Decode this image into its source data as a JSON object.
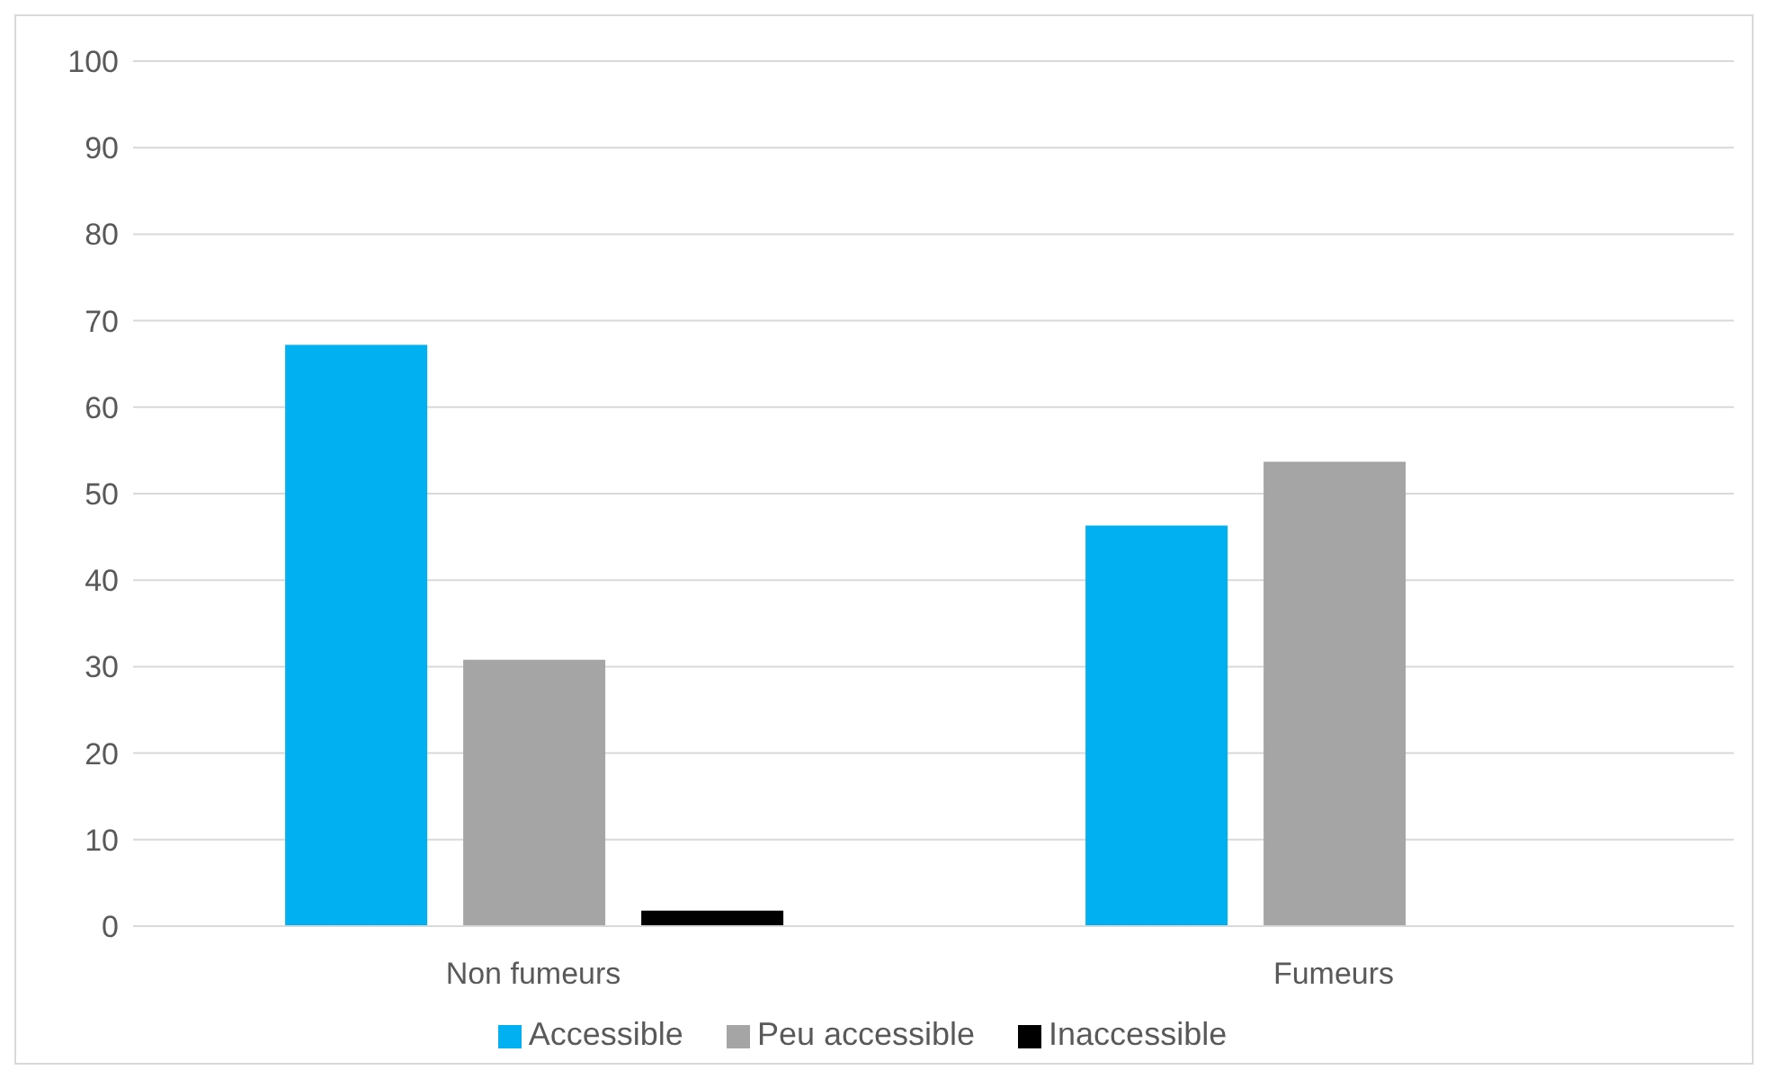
{
  "chart_data": {
    "type": "bar",
    "categories": [
      "Non fumeurs",
      "Fumeurs"
    ],
    "series": [
      {
        "name": "Accessible",
        "color": "#00b0f0",
        "values": [
          67.2,
          46.3
        ]
      },
      {
        "name": "Peu accessible",
        "color": "#a5a5a5",
        "values": [
          30.8,
          53.7
        ]
      },
      {
        "name": "Inaccessible",
        "color": "#000000",
        "values": [
          1.8,
          0
        ]
      }
    ],
    "ylim": [
      0,
      100
    ],
    "yticks": [
      0,
      10,
      20,
      30,
      40,
      50,
      60,
      70,
      80,
      90,
      100
    ],
    "grid": "y",
    "legend": "bottom"
  }
}
